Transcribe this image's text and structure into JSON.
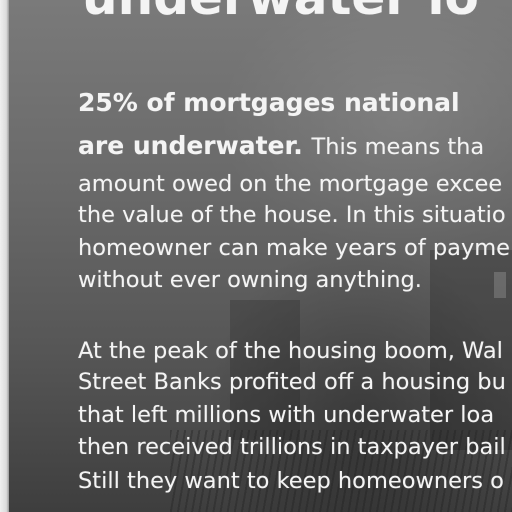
{
  "headline": "underwater lo",
  "paragraph1": {
    "bold_line1": "25% of mortgages national",
    "bold_line2": "are underwater.",
    "line2_rest": "This means tha",
    "lines": [
      "amount owed on the mortgage excee",
      "the value of the house.  In this situatio",
      "homeowner can make years of payme",
      "without ever owning anything."
    ]
  },
  "paragraph2": {
    "lines": [
      "At the peak of the housing boom, Wal",
      "Street Banks profited off  a housing bu",
      "that left millions with underwater loa",
      "then received trillions in taxpayer bail",
      "Still they want to keep homeowners o"
    ]
  },
  "colors": {
    "text": "#f4f4f4",
    "background": "#6f6f6f"
  }
}
